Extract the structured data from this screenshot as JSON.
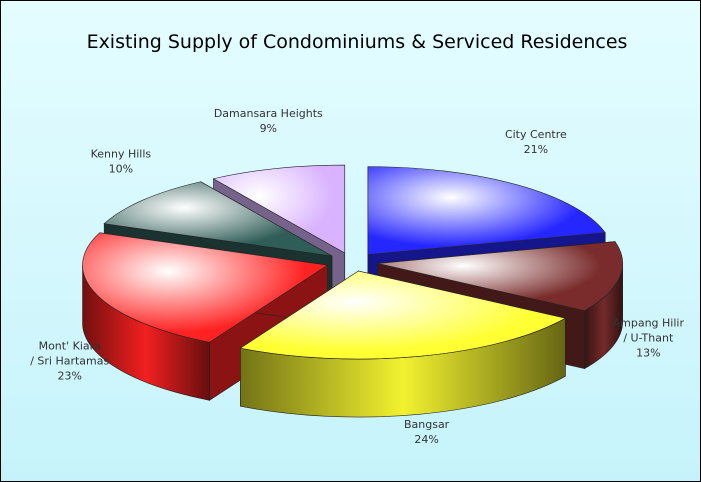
{
  "chart_data": {
    "type": "pie",
    "title": "Existing Supply of Condominiums & Serviced Residences",
    "categories": [
      "City Centre",
      "Ampang Hilir / U-Thant",
      "Bangsar",
      "Mont' Kiara / Sri Hartamas",
      "Kenny Hills",
      "Damansara Heights"
    ],
    "values": [
      21,
      13,
      24,
      23,
      10,
      9
    ],
    "value_labels": [
      "21%",
      "13%",
      "24%",
      "23%",
      "10%",
      "9%"
    ],
    "colors": [
      "#2626ff",
      "#7a2c2c",
      "#ffff33",
      "#ff2222",
      "#2f5d57",
      "#d9b3ff"
    ]
  }
}
